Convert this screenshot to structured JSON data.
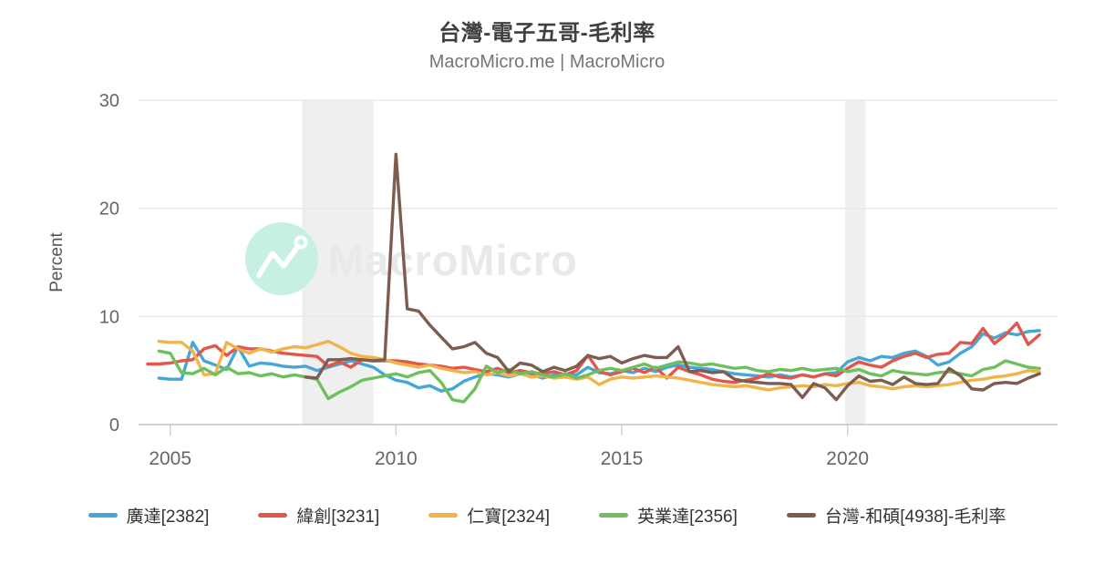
{
  "header": {
    "title": "台灣-電子五哥-毛利率",
    "subtitle": "MacroMicro.me | MacroMicro"
  },
  "watermark": {
    "text": "MacroMicro",
    "logo": "macromicro-logo",
    "circle_color": "#c7f0e5",
    "text_color": "#e7e9ea"
  },
  "colors": {
    "grid": "#e8e8e8",
    "axis": "#c3c3c3",
    "tick": "#cfcfcf",
    "tick_label": "#666666",
    "recession_band": "#efefef"
  },
  "chart_data": {
    "type": "line",
    "title": "台灣-電子五哥-毛利率",
    "xlabel": "",
    "ylabel": "Percent",
    "ylim": [
      0,
      30
    ],
    "yticks": [
      0,
      10,
      20,
      30
    ],
    "xticks": [
      2005,
      2010,
      2015,
      2020
    ],
    "x_range_years": [
      2004.3,
      2024.65
    ],
    "frequency": "quarterly",
    "grid": true,
    "legend_position": "bottom",
    "recession_bands": [
      [
        2007.92,
        2009.5
      ],
      [
        2019.95,
        2020.4
      ]
    ],
    "series": [
      {
        "name": "廣達[2382]",
        "color": "#45a6d8",
        "x_start": 2004.75,
        "x_step": 0.25,
        "values": [
          4.3,
          4.2,
          4.2,
          7.6,
          5.9,
          5.5,
          5.1,
          7.2,
          5.4,
          5.7,
          5.6,
          5.4,
          5.3,
          5.4,
          5.0,
          5.3,
          5.6,
          5.9,
          5.6,
          5.3,
          4.6,
          4.1,
          3.9,
          3.4,
          3.6,
          3.1,
          3.3,
          4.0,
          4.4,
          4.7,
          4.6,
          4.4,
          4.7,
          4.6,
          4.3,
          4.6,
          4.7,
          4.6,
          5.3,
          4.8,
          4.7,
          5.0,
          4.8,
          5.2,
          4.9,
          5.3,
          5.5,
          5.3,
          5.2,
          5.1,
          4.9,
          4.7,
          4.6,
          4.5,
          4.4,
          4.6,
          4.4,
          4.6,
          4.4,
          4.7,
          4.8,
          5.8,
          6.2,
          5.9,
          6.3,
          6.2,
          6.6,
          6.8,
          6.3,
          5.5,
          5.8,
          6.6,
          7.2,
          8.4,
          8.0,
          8.5,
          8.3,
          8.6,
          8.7
        ]
      },
      {
        "name": "緯創[3231]",
        "color": "#e2574a",
        "x_start": 2004.5,
        "x_step": 0.25,
        "values": [
          5.6,
          5.6,
          5.7,
          5.9,
          6.0,
          7.0,
          7.3,
          6.4,
          7.2,
          7.0,
          7.0,
          6.8,
          6.6,
          6.5,
          6.4,
          6.3,
          5.4,
          5.8,
          5.3,
          6.0,
          5.9,
          5.9,
          5.9,
          5.8,
          5.6,
          5.5,
          5.4,
          5.2,
          5.3,
          5.1,
          4.9,
          5.2,
          4.8,
          5.0,
          4.8,
          4.7,
          4.9,
          4.6,
          5.0,
          6.4,
          4.9,
          4.6,
          4.9,
          5.2,
          4.8,
          5.3,
          4.3,
          5.3,
          4.9,
          4.6,
          4.2,
          4.0,
          3.9,
          4.1,
          4.3,
          4.7,
          4.4,
          4.3,
          4.6,
          4.4,
          4.7,
          4.5,
          5.2,
          5.8,
          5.5,
          5.3,
          5.9,
          6.3,
          6.6,
          6.2,
          6.5,
          6.6,
          7.6,
          7.5,
          8.9,
          7.5,
          8.3,
          9.4,
          7.4,
          8.3
        ]
      },
      {
        "name": "仁寶[2324]",
        "color": "#f0b44b",
        "x_start": 2004.75,
        "x_step": 0.25,
        "values": [
          7.7,
          7.6,
          7.6,
          6.8,
          4.6,
          4.7,
          7.6,
          7.0,
          6.6,
          7.0,
          6.7,
          7.0,
          7.2,
          7.1,
          7.4,
          7.7,
          7.2,
          6.6,
          6.3,
          6.2,
          6.0,
          5.7,
          5.5,
          5.3,
          5.5,
          5.2,
          5.0,
          4.8,
          4.9,
          4.6,
          4.8,
          4.5,
          4.7,
          4.4,
          4.5,
          4.3,
          4.4,
          4.2,
          4.4,
          3.7,
          4.2,
          4.4,
          4.3,
          4.4,
          4.5,
          4.4,
          4.3,
          4.1,
          3.9,
          3.7,
          3.6,
          3.5,
          3.6,
          3.4,
          3.2,
          3.4,
          3.5,
          3.6,
          3.5,
          3.7,
          3.6,
          3.8,
          3.9,
          3.6,
          3.5,
          3.3,
          3.5,
          3.6,
          3.5,
          3.6,
          3.7,
          3.9,
          4.1,
          4.2,
          4.4,
          4.5,
          4.7,
          5.0,
          4.9
        ]
      },
      {
        "name": "英業達[2356]",
        "color": "#6ec05f",
        "x_start": 2004.75,
        "x_step": 0.25,
        "values": [
          6.8,
          6.6,
          4.8,
          4.7,
          5.2,
          4.6,
          5.3,
          4.7,
          4.8,
          4.5,
          4.7,
          4.4,
          4.6,
          4.4,
          4.2,
          2.4,
          3.0,
          3.5,
          4.1,
          4.3,
          4.5,
          4.7,
          4.4,
          4.8,
          5.0,
          3.9,
          2.3,
          2.1,
          3.3,
          5.4,
          4.8,
          5.1,
          4.7,
          4.9,
          4.6,
          4.4,
          4.7,
          4.3,
          4.6,
          5.0,
          5.2,
          5.0,
          5.3,
          5.6,
          5.2,
          5.5,
          5.8,
          5.7,
          5.5,
          5.6,
          5.4,
          5.2,
          5.3,
          5.0,
          4.9,
          5.1,
          5.0,
          5.2,
          5.0,
          5.1,
          5.2,
          4.9,
          5.1,
          4.7,
          4.5,
          5.0,
          4.8,
          4.7,
          4.6,
          4.8,
          4.9,
          4.7,
          4.5,
          5.1,
          5.3,
          5.9,
          5.6,
          5.3,
          5.2
        ]
      },
      {
        "name": "台灣-和碩[4938]-毛利率",
        "color": "#7d5d4f",
        "x_start": 2008.0,
        "x_step": 0.25,
        "values": [
          4.4,
          4.3,
          6.0,
          6.0,
          6.1,
          6.0,
          5.9,
          6.0,
          25.0,
          10.7,
          10.5,
          9.2,
          8.1,
          7.0,
          7.2,
          7.6,
          6.6,
          6.2,
          4.9,
          5.7,
          5.5,
          4.9,
          5.3,
          5.0,
          5.4,
          6.4,
          6.1,
          6.3,
          5.7,
          6.1,
          6.4,
          6.2,
          6.2,
          7.2,
          4.9,
          5.0,
          4.8,
          4.9,
          4.2,
          4.0,
          3.9,
          3.8,
          3.8,
          3.7,
          2.5,
          3.8,
          3.4,
          2.3,
          3.6,
          4.5,
          4.0,
          4.1,
          3.7,
          4.4,
          3.8,
          3.7,
          3.8,
          5.2,
          4.5,
          3.3,
          3.2,
          3.8,
          3.9,
          3.8,
          4.3,
          4.7
        ]
      }
    ]
  }
}
